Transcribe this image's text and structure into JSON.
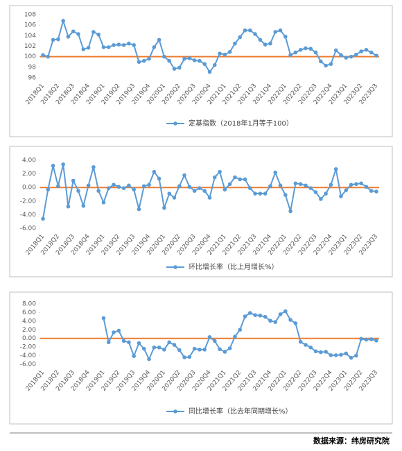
{
  "chart_data": [
    {
      "type": "line",
      "categories": [
        "2018Q1",
        null,
        null,
        "2018Q2",
        null,
        null,
        "2018Q3",
        null,
        null,
        "2018Q4",
        null,
        null,
        "2019Q1",
        null,
        null,
        "2019Q2",
        null,
        null,
        "2019Q3",
        null,
        null,
        "2019Q4",
        null,
        null,
        "2020Q1",
        null,
        null,
        "2020Q2",
        null,
        null,
        "2020Q3",
        null,
        null,
        "2020Q4",
        null,
        null,
        "2021Q1",
        null,
        null,
        "2021Q2",
        null,
        null,
        "2021Q3",
        null,
        null,
        "2021Q4",
        null,
        null,
        "2022Q1",
        null,
        null,
        "2022Q2",
        null,
        null,
        "2022Q3",
        null,
        null,
        "2022Q4",
        null,
        null,
        "2023Q1",
        null,
        null,
        "2023Q2",
        null,
        null,
        "2023Q3"
      ],
      "series": [
        {
          "name": "定基指数（2018年1月等于100）",
          "color": "#5b9bd5",
          "values": [
            100.3,
            100.0,
            103.2,
            103.3,
            106.8,
            103.8,
            104.8,
            104.3,
            101.4,
            101.7,
            104.7,
            104.2,
            101.8,
            101.8,
            102.2,
            102.3,
            102.2,
            102.5,
            102.2,
            99.0,
            99.2,
            99.6,
            101.8,
            103.2,
            100.0,
            99.2,
            97.7,
            97.9,
            99.6,
            99.7,
            99.3,
            99.2,
            98.6,
            97.1,
            98.4,
            100.6,
            100.4,
            100.9,
            102.5,
            103.7,
            105.0,
            105.0,
            104.3,
            103.2,
            102.3,
            102.5,
            104.7,
            105.0,
            103.8,
            100.3,
            100.8,
            101.3,
            101.6,
            101.5,
            100.8,
            99.1,
            98.3,
            98.6,
            101.2,
            100.3,
            99.8,
            100.0,
            100.4,
            101.0,
            101.3,
            100.8,
            100.2
          ]
        }
      ],
      "reference_line": {
        "value": 100,
        "color": "#ed7d31"
      },
      "ylim": [
        96,
        108
      ],
      "yticks": [
        96,
        98,
        100,
        102,
        104,
        106,
        108
      ]
    },
    {
      "type": "line",
      "categories": [
        "2018Q1",
        null,
        null,
        "2018Q2",
        null,
        null,
        "2018Q3",
        null,
        null,
        "2018Q4",
        null,
        null,
        "2019Q1",
        null,
        null,
        "2019Q2",
        null,
        null,
        "2019Q3",
        null,
        null,
        "2019Q4",
        null,
        null,
        "2020Q1",
        null,
        null,
        "2020Q2",
        null,
        null,
        "2020Q3",
        null,
        null,
        "2020Q4",
        null,
        null,
        "2021Q1",
        null,
        null,
        "2021Q2",
        null,
        null,
        "2021Q3",
        null,
        null,
        "2021Q4",
        null,
        null,
        "2022Q1",
        null,
        null,
        "2022Q2",
        null,
        null,
        "2022Q3",
        null,
        null,
        "2022Q4",
        null,
        null,
        "2023Q1",
        null,
        null,
        "2023Q2",
        null,
        null,
        "2023Q3"
      ],
      "series": [
        {
          "name": "环比增长率（比上月增长%）",
          "color": "#5b9bd5",
          "values": [
            -4.6,
            -0.3,
            3.2,
            0.2,
            3.4,
            -2.8,
            1.0,
            -0.5,
            -2.7,
            0.3,
            3.0,
            -0.5,
            -2.2,
            -0.1,
            0.4,
            0.1,
            -0.1,
            0.3,
            -0.3,
            -3.2,
            0.2,
            0.4,
            2.3,
            1.3,
            -3.0,
            -0.9,
            -1.5,
            0.2,
            1.8,
            0.1,
            -0.5,
            -0.1,
            -0.5,
            -1.5,
            1.5,
            2.3,
            -0.3,
            0.5,
            1.5,
            1.2,
            1.2,
            -0.1,
            -0.9,
            -0.9,
            -0.9,
            0.2,
            2.2,
            0.3,
            -1.1,
            -3.5,
            0.6,
            0.5,
            0.3,
            -0.1,
            -0.7,
            -1.7,
            -0.9,
            0.4,
            2.7,
            -1.3,
            -0.4,
            0.4,
            0.5,
            0.6,
            0.1,
            -0.5,
            -0.6
          ]
        }
      ],
      "reference_line": {
        "value": 0,
        "color": "#ed7d31"
      },
      "ylim": [
        -6,
        4
      ],
      "yticks": [
        {
          "value": -6,
          "label": "-6.00"
        },
        {
          "value": -4,
          "label": "-4.00"
        },
        {
          "value": -2,
          "label": "-2.00"
        },
        {
          "value": 0,
          "label": "0.00"
        },
        {
          "value": 2,
          "label": "2.00"
        },
        {
          "value": 4,
          "label": "4.00"
        }
      ]
    },
    {
      "type": "line",
      "categories": [
        "2018Q1",
        null,
        null,
        "2018Q2",
        null,
        null,
        "2018Q3",
        null,
        null,
        "2018Q4",
        null,
        null,
        "2019Q1",
        null,
        null,
        "2019Q2",
        null,
        null,
        "2019Q3",
        null,
        null,
        "2019Q4",
        null,
        null,
        "2020Q1",
        null,
        null,
        "2020Q2",
        null,
        null,
        "2020Q3",
        null,
        null,
        "2020Q4",
        null,
        null,
        "2021Q1",
        null,
        null,
        "2021Q2",
        null,
        null,
        "2021Q3",
        null,
        null,
        "2021Q4",
        null,
        null,
        "2022Q1",
        null,
        null,
        "2022Q2",
        null,
        null,
        "2022Q3",
        null,
        null,
        "2022Q4",
        null,
        null,
        "2023Q1",
        null,
        null,
        "2023Q2",
        null,
        null,
        "2023Q3"
      ],
      "series": [
        {
          "name": "同比增长率（比去年同期增长%）",
          "color": "#5b9bd5",
          "values": [
            null,
            null,
            null,
            null,
            null,
            null,
            null,
            null,
            null,
            null,
            null,
            null,
            4.7,
            -0.9,
            1.4,
            1.8,
            -0.6,
            -0.9,
            -4.1,
            -1.1,
            -2.4,
            -4.8,
            -2.1,
            -2.1,
            -2.6,
            -0.9,
            -1.5,
            -2.7,
            -4.4,
            -4.3,
            -2.4,
            -2.6,
            -2.6,
            0.3,
            -0.6,
            -2.5,
            -3.1,
            -2.3,
            0.4,
            2.0,
            5.1,
            5.9,
            5.4,
            5.3,
            5.0,
            4.1,
            3.8,
            5.6,
            6.3,
            4.3,
            3.5,
            -0.8,
            -1.5,
            -2.1,
            -3.0,
            -3.2,
            -3.1,
            -3.9,
            -3.9,
            -3.8,
            -3.5,
            -4.5,
            -4.0,
            -0.1,
            -0.3,
            -0.2,
            -0.5
          ]
        }
      ],
      "reference_line": {
        "value": 0,
        "color": "#ed7d31"
      },
      "ylim": [
        -6,
        8
      ],
      "yticks": [
        {
          "value": -6,
          "label": "-6.00"
        },
        {
          "value": -4,
          "label": "-4.00"
        },
        {
          "value": -2,
          "label": "-2.00"
        },
        {
          "value": 0,
          "label": "0.00"
        },
        {
          "value": 2,
          "label": "2.00"
        },
        {
          "value": 4,
          "label": "4.00"
        },
        {
          "value": 6,
          "label": "6.00"
        },
        {
          "value": 8,
          "label": "8.00"
        }
      ]
    }
  ],
  "source": "数据来源：纬房研究院"
}
